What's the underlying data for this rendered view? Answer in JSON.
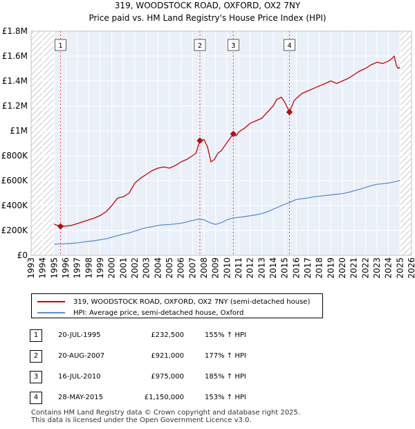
{
  "chart_data": {
    "type": "line",
    "title": "319, WOODSTOCK ROAD, OXFORD, OX2 7NY",
    "subtitle": "Price paid vs. HM Land Registry's House Price Index (HPI)",
    "xlabel": "",
    "ylabel": "",
    "xlim": [
      1993,
      2026
    ],
    "ylim": [
      0,
      1800000
    ],
    "x_ticks": [
      "1993",
      "1994",
      "1995",
      "1996",
      "1997",
      "1998",
      "1999",
      "2000",
      "2001",
      "2002",
      "2003",
      "2004",
      "2005",
      "2006",
      "2007",
      "2008",
      "2009",
      "2010",
      "2011",
      "2012",
      "2013",
      "2014",
      "2015",
      "2016",
      "2017",
      "2018",
      "2019",
      "2020",
      "2021",
      "2022",
      "2023",
      "2024",
      "2025",
      "2026"
    ],
    "y_ticks": [
      {
        "value": 0,
        "label": "£0"
      },
      {
        "value": 200000,
        "label": "£200K"
      },
      {
        "value": 400000,
        "label": "£400K"
      },
      {
        "value": 600000,
        "label": "£600K"
      },
      {
        "value": 800000,
        "label": "£800K"
      },
      {
        "value": 1000000,
        "label": "£1M"
      },
      {
        "value": 1200000,
        "label": "£1.2M"
      },
      {
        "value": 1400000,
        "label": "£1.4M"
      },
      {
        "value": 1600000,
        "label": "£1.6M"
      },
      {
        "value": 1800000,
        "label": "£1.8M"
      }
    ],
    "hatched_ranges": [
      [
        1993,
        1995.0
      ],
      [
        2025.0,
        2026
      ]
    ],
    "series": [
      {
        "name": "319, WOODSTOCK ROAD, OXFORD, OX2 7NY (semi-detached house)",
        "color": "#cc0000",
        "x": [
          1995.0,
          1995.55,
          1996,
          1996.5,
          1997,
          1997.5,
          1998,
          1998.5,
          1999,
          1999.5,
          2000,
          2000.5,
          2001,
          2001.5,
          2002,
          2002.5,
          2003,
          2003.5,
          2004,
          2004.5,
          2005,
          2005.5,
          2006,
          2006.5,
          2007,
          2007.3,
          2007.64,
          2008,
          2008.3,
          2008.6,
          2008.9,
          2009.2,
          2009.5,
          2009.8,
          2010.1,
          2010.54,
          2010.8,
          2011,
          2011.5,
          2012,
          2012.5,
          2013,
          2013.5,
          2014,
          2014.3,
          2014.7,
          2015,
          2015.41,
          2015.8,
          2016,
          2016.5,
          2017,
          2017.5,
          2018,
          2018.5,
          2019,
          2019.5,
          2020,
          2020.5,
          2021,
          2021.5,
          2022,
          2022.5,
          2023,
          2023.5,
          2024,
          2024.3,
          2024.5,
          2024.7,
          2024.85,
          2025.0
        ],
        "y": [
          250000,
          232500,
          235000,
          240000,
          255000,
          270000,
          285000,
          300000,
          320000,
          350000,
          400000,
          460000,
          470000,
          500000,
          580000,
          620000,
          650000,
          680000,
          700000,
          710000,
          700000,
          720000,
          750000,
          770000,
          800000,
          820000,
          921000,
          930000,
          870000,
          750000,
          770000,
          820000,
          840000,
          880000,
          920000,
          975000,
          960000,
          990000,
          1020000,
          1060000,
          1080000,
          1100000,
          1150000,
          1200000,
          1250000,
          1270000,
          1230000,
          1150000,
          1240000,
          1260000,
          1300000,
          1320000,
          1340000,
          1360000,
          1380000,
          1400000,
          1380000,
          1400000,
          1420000,
          1450000,
          1480000,
          1500000,
          1530000,
          1550000,
          1540000,
          1560000,
          1580000,
          1600000,
          1520000,
          1500000,
          1510000
        ]
      },
      {
        "name": "HPI: Average price, semi-detached house, Oxford",
        "color": "#5b8fcf",
        "x": [
          1995.0,
          1995.5,
          1996,
          1996.5,
          1997,
          1997.5,
          1998,
          1998.5,
          1999,
          1999.5,
          2000,
          2000.5,
          2001,
          2001.5,
          2002,
          2002.5,
          2003,
          2003.5,
          2004,
          2004.5,
          2005,
          2005.5,
          2006,
          2006.5,
          2007,
          2007.5,
          2008,
          2008.5,
          2009,
          2009.5,
          2010,
          2010.5,
          2011,
          2011.5,
          2012,
          2012.5,
          2013,
          2013.5,
          2014,
          2014.5,
          2015,
          2015.5,
          2016,
          2016.5,
          2017,
          2017.5,
          2018,
          2018.5,
          2019,
          2019.5,
          2020,
          2020.5,
          2021,
          2021.5,
          2022,
          2022.5,
          2023,
          2023.5,
          2024,
          2024.5,
          2025.0
        ],
        "y": [
          90000,
          91000,
          93000,
          96000,
          100000,
          106000,
          112000,
          118000,
          125000,
          133000,
          145000,
          158000,
          170000,
          180000,
          195000,
          210000,
          222000,
          230000,
          240000,
          245000,
          247000,
          252000,
          258000,
          268000,
          280000,
          290000,
          285000,
          262000,
          248000,
          262000,
          285000,
          300000,
          305000,
          310000,
          318000,
          325000,
          335000,
          350000,
          370000,
          390000,
          410000,
          428000,
          448000,
          455000,
          460000,
          470000,
          475000,
          480000,
          485000,
          490000,
          495000,
          505000,
          518000,
          530000,
          545000,
          560000,
          570000,
          575000,
          580000,
          590000,
          600000
        ]
      }
    ],
    "sales": [
      {
        "id": "1",
        "x": 1995.55,
        "y": 232500
      },
      {
        "id": "2",
        "x": 2007.64,
        "y": 921000
      },
      {
        "id": "3",
        "x": 2010.54,
        "y": 975000
      },
      {
        "id": "4",
        "x": 2015.41,
        "y": 1150000
      }
    ]
  },
  "legend": {
    "property_label": "319, WOODSTOCK ROAD, OXFORD, OX2 7NY (semi-detached house)",
    "hpi_label": "HPI: Average price, semi-detached house, Oxford",
    "property_color": "#cc0000",
    "hpi_color": "#5b8fcf"
  },
  "sales_table": [
    {
      "num": "1",
      "date": "20-JUL-1995",
      "price": "£232,500",
      "hpi": "155% ↑ HPI"
    },
    {
      "num": "2",
      "date": "20-AUG-2007",
      "price": "£921,000",
      "hpi": "177% ↑ HPI"
    },
    {
      "num": "3",
      "date": "16-JUL-2010",
      "price": "£975,000",
      "hpi": "185% ↑ HPI"
    },
    {
      "num": "4",
      "date": "28-MAY-2015",
      "price": "£1,150,000",
      "hpi": "153% ↑ HPI"
    }
  ],
  "footer": {
    "line1": "Contains HM Land Registry data © Crown copyright and database right 2025.",
    "line2": "This data is licensed under the Open Government Licence v3.0."
  }
}
